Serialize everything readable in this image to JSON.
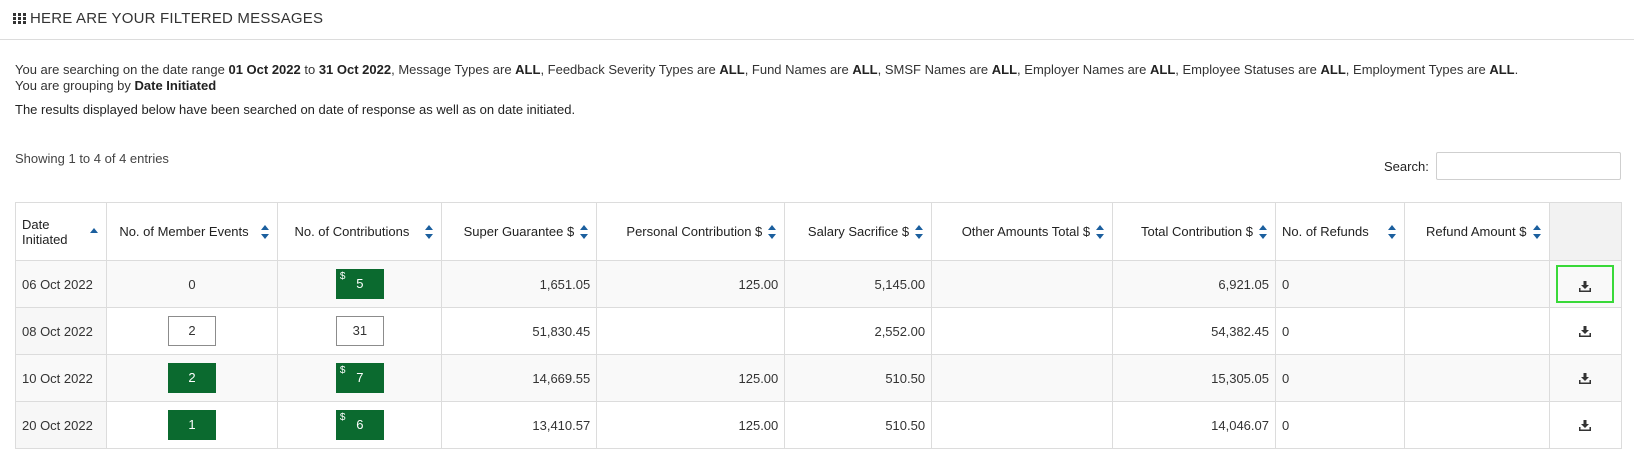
{
  "header": {
    "title": "HERE ARE YOUR FILTERED MESSAGES",
    "icon": "grid-icon"
  },
  "summary": {
    "t1": "You are searching on the date range ",
    "from": "01 Oct 2022",
    "t2": " to ",
    "to": "31 Oct 2022",
    "t3": ", Message Types are ",
    "message_types": "ALL",
    "t4": ", Feedback Severity Types are ",
    "feedback_severity": "ALL",
    "t5": ", Fund Names are ",
    "fund_names": "ALL",
    "t6": ", SMSF Names are ",
    "smsf_names": "ALL",
    "t7": ", Employer Names are ",
    "employer_names": "ALL",
    "t8": ", Employee Statuses are ",
    "employee_statuses": "ALL",
    "t9": ", Employment Types are ",
    "employment_types": "ALL",
    "t10": ".",
    "group_prefix": "You are grouping by ",
    "group_by": "Date Initiated"
  },
  "note": "The results displayed below have been searched on date of response as well as on date initiated.",
  "showing": "Showing 1 to 4 of 4 entries",
  "search": {
    "label": "Search:",
    "value": ""
  },
  "table": {
    "headers": {
      "date_a": "Date",
      "date_b": "Initiated",
      "member_events": "No. of Member Events",
      "contributions": "No. of Contributions",
      "super_guarantee": "Super Guarantee $",
      "personal": "Personal Contribution $",
      "salary_sacrifice": "Salary Sacrifice $",
      "other": "Other Amounts Total $",
      "total": "Total Contribution $",
      "refunds": "No. of Refunds",
      "refund_amount": "Refund Amount $"
    },
    "rows": [
      {
        "date": "06 Oct 2022",
        "member_events": "0",
        "contributions": "5",
        "currency": "$",
        "super_guarantee": "1,651.05",
        "personal": "125.00",
        "salary_sacrifice": "5,145.00",
        "other": "",
        "total": "6,921.05",
        "refunds": "0",
        "refund_amount": ""
      },
      {
        "date": "08 Oct 2022",
        "member_events": "2",
        "contributions": "31",
        "currency": "$",
        "super_guarantee": "51,830.45",
        "personal": "",
        "salary_sacrifice": "2,552.00",
        "other": "",
        "total": "54,382.45",
        "refunds": "0",
        "refund_amount": ""
      },
      {
        "date": "10 Oct 2022",
        "member_events": "2",
        "contributions": "7",
        "currency": "$",
        "super_guarantee": "14,669.55",
        "personal": "125.00",
        "salary_sacrifice": "510.50",
        "other": "",
        "total": "15,305.05",
        "refunds": "0",
        "refund_amount": ""
      },
      {
        "date": "20 Oct 2022",
        "member_events": "1",
        "contributions": "6",
        "currency": "$",
        "super_guarantee": "13,410.57",
        "personal": "125.00",
        "salary_sacrifice": "510.50",
        "other": "",
        "total": "14,046.07",
        "refunds": "0",
        "refund_amount": ""
      }
    ]
  },
  "colors": {
    "accent_green": "#0b6a2f",
    "sort_blue": "#1b5f9e",
    "focus_green": "#39d939"
  }
}
